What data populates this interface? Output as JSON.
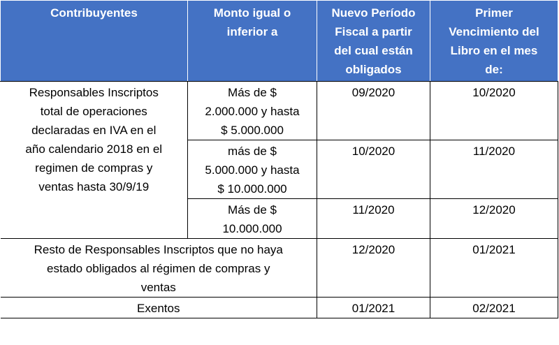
{
  "header": {
    "col1": [
      "Contribuyentes"
    ],
    "col2": [
      "Monto igual o",
      "inferior a"
    ],
    "col3": [
      "Nuevo Período",
      "Fiscal a partir",
      "del cual están",
      "obligados"
    ],
    "col4": [
      "Primer",
      "Vencimiento del",
      "Libro en el mes",
      "de:"
    ]
  },
  "rows": {
    "group1_label": [
      "Responsables Inscriptos",
      "total de operaciones",
      "declaradas en IVA en el",
      "año calendario 2018 en el",
      "regimen de compras y",
      "ventas hasta 30/9/19"
    ],
    "r1": {
      "monto": [
        "Más de $",
        "2.000.000 y hasta",
        "$ 5.000.000"
      ],
      "periodo": "09/2020",
      "vencimiento": "10/2020"
    },
    "r2": {
      "monto": [
        "más de $",
        "5.000.000 y hasta",
        "$ 10.000.000"
      ],
      "periodo": "10/2020",
      "vencimiento": "11/2020"
    },
    "r3": {
      "monto": [
        "Más de $",
        "10.000.000"
      ],
      "periodo": "11/2020",
      "vencimiento": "12/2020"
    },
    "r4": {
      "label": [
        "Resto de Responsables Inscriptos que no haya",
        "estado obligados al régimen de compras y",
        "ventas"
      ],
      "periodo": "12/2020",
      "vencimiento": "01/2021"
    },
    "r5": {
      "label": "Exentos",
      "periodo": "01/2021",
      "vencimiento": "02/2021"
    }
  }
}
